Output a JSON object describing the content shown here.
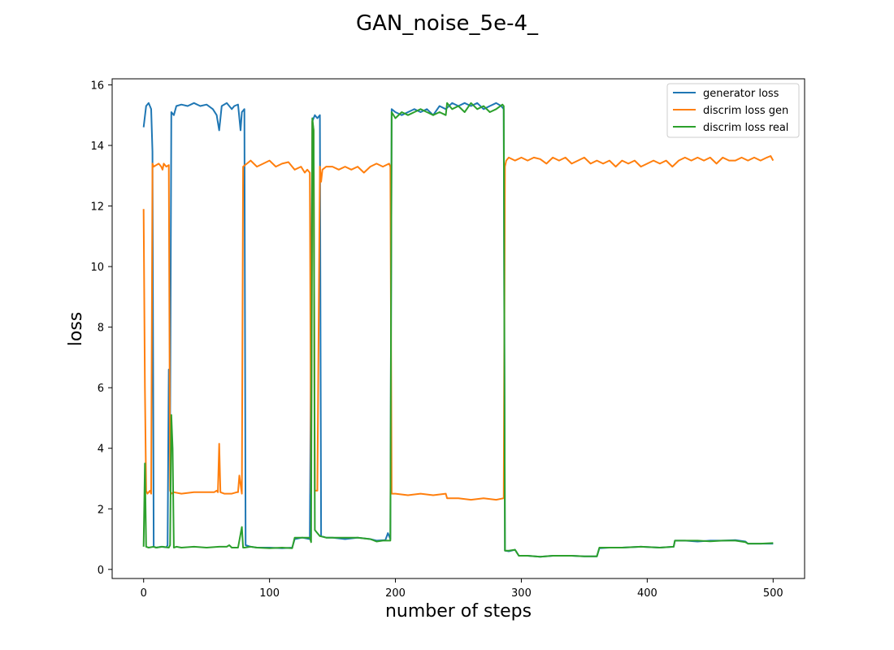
{
  "chart_data": {
    "type": "line",
    "title": "GAN_noise_5e-4_",
    "xlabel": "number of steps",
    "ylabel": "loss",
    "xlim": [
      -25,
      525
    ],
    "ylim": [
      -0.3,
      16.2
    ],
    "xticks": [
      0,
      100,
      200,
      300,
      400,
      500
    ],
    "yticks": [
      0,
      2,
      4,
      6,
      8,
      10,
      12,
      14,
      16
    ],
    "grid": false,
    "legend_position": "top-right",
    "series": [
      {
        "name": "generator loss",
        "color": "#1f77b4",
        "points": [
          [
            0,
            14.6
          ],
          [
            2,
            15.3
          ],
          [
            4,
            15.4
          ],
          [
            6,
            15.2
          ],
          [
            7,
            13.8
          ],
          [
            8,
            0.75
          ],
          [
            10,
            0.72
          ],
          [
            14,
            0.75
          ],
          [
            18,
            0.73
          ],
          [
            19,
            0.8
          ],
          [
            20,
            6.6
          ],
          [
            21,
            4.7
          ],
          [
            22,
            15.1
          ],
          [
            24,
            15.0
          ],
          [
            26,
            15.3
          ],
          [
            30,
            15.35
          ],
          [
            35,
            15.3
          ],
          [
            40,
            15.4
          ],
          [
            45,
            15.3
          ],
          [
            50,
            15.35
          ],
          [
            55,
            15.2
          ],
          [
            58,
            15.0
          ],
          [
            60,
            14.5
          ],
          [
            62,
            15.3
          ],
          [
            66,
            15.4
          ],
          [
            70,
            15.2
          ],
          [
            72,
            15.3
          ],
          [
            75,
            15.35
          ],
          [
            77,
            14.5
          ],
          [
            78,
            15.1
          ],
          [
            80,
            15.2
          ],
          [
            81,
            0.8
          ],
          [
            85,
            0.75
          ],
          [
            90,
            0.72
          ],
          [
            100,
            0.72
          ],
          [
            110,
            0.7
          ],
          [
            118,
            0.72
          ],
          [
            120,
            1.0
          ],
          [
            126,
            1.05
          ],
          [
            132,
            1.0
          ],
          [
            134,
            14.8
          ],
          [
            136,
            15.0
          ],
          [
            138,
            14.9
          ],
          [
            140,
            15.0
          ],
          [
            141,
            1.1
          ],
          [
            145,
            1.05
          ],
          [
            150,
            1.05
          ],
          [
            160,
            1.0
          ],
          [
            170,
            1.05
          ],
          [
            180,
            1.0
          ],
          [
            185,
            0.95
          ],
          [
            192,
            0.97
          ],
          [
            194,
            1.2
          ],
          [
            196,
            1.0
          ],
          [
            197,
            15.2
          ],
          [
            200,
            15.1
          ],
          [
            205,
            15.0
          ],
          [
            210,
            15.1
          ],
          [
            215,
            15.2
          ],
          [
            220,
            15.1
          ],
          [
            225,
            15.2
          ],
          [
            230,
            15.0
          ],
          [
            235,
            15.3
          ],
          [
            240,
            15.2
          ],
          [
            245,
            15.4
          ],
          [
            250,
            15.3
          ],
          [
            255,
            15.4
          ],
          [
            260,
            15.3
          ],
          [
            265,
            15.4
          ],
          [
            270,
            15.2
          ],
          [
            275,
            15.3
          ],
          [
            280,
            15.4
          ],
          [
            284,
            15.3
          ],
          [
            286,
            15.2
          ],
          [
            287,
            0.62
          ],
          [
            290,
            0.6
          ],
          [
            295,
            0.65
          ],
          [
            298,
            0.45
          ],
          [
            305,
            0.45
          ],
          [
            315,
            0.42
          ],
          [
            325,
            0.45
          ],
          [
            340,
            0.45
          ],
          [
            350,
            0.43
          ],
          [
            360,
            0.43
          ],
          [
            362,
            0.7
          ],
          [
            370,
            0.72
          ],
          [
            380,
            0.72
          ],
          [
            395,
            0.75
          ],
          [
            410,
            0.72
          ],
          [
            421,
            0.75
          ],
          [
            422,
            0.95
          ],
          [
            430,
            0.95
          ],
          [
            440,
            0.92
          ],
          [
            450,
            0.95
          ],
          [
            460,
            0.95
          ],
          [
            470,
            0.97
          ],
          [
            478,
            0.92
          ],
          [
            480,
            0.85
          ],
          [
            490,
            0.85
          ],
          [
            500,
            0.85
          ]
        ]
      },
      {
        "name": "discrim loss gen",
        "color": "#ff7f0e",
        "points": [
          [
            0,
            11.9
          ],
          [
            1,
            6.0
          ],
          [
            2,
            2.6
          ],
          [
            3,
            2.5
          ],
          [
            5,
            2.6
          ],
          [
            6,
            2.5
          ],
          [
            7,
            13.4
          ],
          [
            8,
            13.3
          ],
          [
            10,
            13.35
          ],
          [
            12,
            13.4
          ],
          [
            14,
            13.3
          ],
          [
            15,
            13.2
          ],
          [
            16,
            13.4
          ],
          [
            18,
            13.3
          ],
          [
            20,
            13.35
          ],
          [
            21,
            2.6
          ],
          [
            22,
            2.5
          ],
          [
            24,
            2.55
          ],
          [
            30,
            2.5
          ],
          [
            40,
            2.55
          ],
          [
            50,
            2.55
          ],
          [
            56,
            2.55
          ],
          [
            58,
            2.6
          ],
          [
            59,
            2.55
          ],
          [
            60,
            4.15
          ],
          [
            61,
            2.55
          ],
          [
            64,
            2.5
          ],
          [
            70,
            2.5
          ],
          [
            74,
            2.55
          ],
          [
            75,
            2.55
          ],
          [
            76,
            3.1
          ],
          [
            78,
            2.5
          ],
          [
            79,
            13.3
          ],
          [
            82,
            13.4
          ],
          [
            85,
            13.5
          ],
          [
            90,
            13.3
          ],
          [
            95,
            13.4
          ],
          [
            100,
            13.5
          ],
          [
            105,
            13.3
          ],
          [
            110,
            13.4
          ],
          [
            115,
            13.45
          ],
          [
            118,
            13.3
          ],
          [
            120,
            13.2
          ],
          [
            125,
            13.3
          ],
          [
            128,
            13.1
          ],
          [
            130,
            13.2
          ],
          [
            132,
            13.1
          ],
          [
            133,
            2.5
          ],
          [
            134,
            14.8
          ],
          [
            135,
            14.5
          ],
          [
            136,
            2.6
          ],
          [
            138,
            2.6
          ],
          [
            140,
            13.3
          ],
          [
            141,
            12.8
          ],
          [
            142,
            13.2
          ],
          [
            145,
            13.3
          ],
          [
            150,
            13.3
          ],
          [
            155,
            13.2
          ],
          [
            160,
            13.3
          ],
          [
            165,
            13.2
          ],
          [
            170,
            13.3
          ],
          [
            175,
            13.1
          ],
          [
            180,
            13.3
          ],
          [
            185,
            13.4
          ],
          [
            190,
            13.3
          ],
          [
            195,
            13.4
          ],
          [
            196,
            13.3
          ],
          [
            197,
            2.5
          ],
          [
            200,
            2.5
          ],
          [
            210,
            2.45
          ],
          [
            220,
            2.5
          ],
          [
            230,
            2.45
          ],
          [
            240,
            2.5
          ],
          [
            241,
            2.35
          ],
          [
            250,
            2.35
          ],
          [
            260,
            2.3
          ],
          [
            270,
            2.35
          ],
          [
            280,
            2.3
          ],
          [
            286,
            2.35
          ],
          [
            287,
            13.3
          ],
          [
            288,
            13.5
          ],
          [
            290,
            13.6
          ],
          [
            295,
            13.5
          ],
          [
            300,
            13.6
          ],
          [
            305,
            13.5
          ],
          [
            310,
            13.6
          ],
          [
            315,
            13.55
          ],
          [
            320,
            13.4
          ],
          [
            325,
            13.6
          ],
          [
            330,
            13.5
          ],
          [
            335,
            13.6
          ],
          [
            340,
            13.4
          ],
          [
            345,
            13.5
          ],
          [
            350,
            13.6
          ],
          [
            355,
            13.4
          ],
          [
            360,
            13.5
          ],
          [
            365,
            13.4
          ],
          [
            370,
            13.5
          ],
          [
            375,
            13.3
          ],
          [
            380,
            13.5
          ],
          [
            385,
            13.4
          ],
          [
            390,
            13.5
          ],
          [
            395,
            13.3
          ],
          [
            400,
            13.4
          ],
          [
            405,
            13.5
          ],
          [
            410,
            13.4
          ],
          [
            415,
            13.5
          ],
          [
            420,
            13.3
          ],
          [
            425,
            13.5
          ],
          [
            430,
            13.6
          ],
          [
            435,
            13.5
          ],
          [
            440,
            13.6
          ],
          [
            445,
            13.5
          ],
          [
            450,
            13.6
          ],
          [
            455,
            13.4
          ],
          [
            460,
            13.6
          ],
          [
            465,
            13.5
          ],
          [
            470,
            13.5
          ],
          [
            475,
            13.6
          ],
          [
            480,
            13.5
          ],
          [
            485,
            13.6
          ],
          [
            490,
            13.5
          ],
          [
            495,
            13.6
          ],
          [
            498,
            13.65
          ],
          [
            500,
            13.5
          ]
        ]
      },
      {
        "name": "discrim loss real",
        "color": "#2ca02c",
        "points": [
          [
            0,
            0.75
          ],
          [
            1,
            3.5
          ],
          [
            2,
            0.75
          ],
          [
            4,
            0.72
          ],
          [
            8,
            0.75
          ],
          [
            10,
            0.72
          ],
          [
            15,
            0.75
          ],
          [
            20,
            0.72
          ],
          [
            21,
            0.8
          ],
          [
            22,
            5.1
          ],
          [
            23,
            4.0
          ],
          [
            24,
            0.72
          ],
          [
            26,
            0.75
          ],
          [
            30,
            0.72
          ],
          [
            40,
            0.75
          ],
          [
            50,
            0.72
          ],
          [
            60,
            0.75
          ],
          [
            66,
            0.75
          ],
          [
            68,
            0.8
          ],
          [
            70,
            0.72
          ],
          [
            75,
            0.72
          ],
          [
            78,
            1.4
          ],
          [
            79,
            0.72
          ],
          [
            80,
            0.72
          ],
          [
            85,
            0.75
          ],
          [
            90,
            0.72
          ],
          [
            100,
            0.7
          ],
          [
            110,
            0.72
          ],
          [
            118,
            0.7
          ],
          [
            120,
            1.05
          ],
          [
            126,
            1.05
          ],
          [
            132,
            1.05
          ],
          [
            133,
            0.9
          ],
          [
            134,
            14.9
          ],
          [
            135,
            14.5
          ],
          [
            136,
            1.3
          ],
          [
            138,
            1.2
          ],
          [
            140,
            1.1
          ],
          [
            145,
            1.05
          ],
          [
            150,
            1.05
          ],
          [
            155,
            1.05
          ],
          [
            160,
            1.05
          ],
          [
            170,
            1.05
          ],
          [
            180,
            1.0
          ],
          [
            185,
            0.92
          ],
          [
            190,
            0.95
          ],
          [
            196,
            0.95
          ],
          [
            197,
            15.1
          ],
          [
            200,
            14.9
          ],
          [
            205,
            15.1
          ],
          [
            210,
            15.0
          ],
          [
            215,
            15.1
          ],
          [
            220,
            15.2
          ],
          [
            225,
            15.1
          ],
          [
            230,
            15.0
          ],
          [
            235,
            15.1
          ],
          [
            240,
            15.0
          ],
          [
            241,
            15.4
          ],
          [
            245,
            15.2
          ],
          [
            250,
            15.3
          ],
          [
            255,
            15.1
          ],
          [
            260,
            15.4
          ],
          [
            265,
            15.2
          ],
          [
            270,
            15.3
          ],
          [
            275,
            15.1
          ],
          [
            280,
            15.2
          ],
          [
            285,
            15.35
          ],
          [
            286,
            15.3
          ],
          [
            287,
            0.62
          ],
          [
            290,
            0.62
          ],
          [
            295,
            0.65
          ],
          [
            298,
            0.45
          ],
          [
            305,
            0.45
          ],
          [
            315,
            0.42
          ],
          [
            325,
            0.45
          ],
          [
            340,
            0.45
          ],
          [
            350,
            0.43
          ],
          [
            360,
            0.43
          ],
          [
            362,
            0.72
          ],
          [
            370,
            0.72
          ],
          [
            380,
            0.72
          ],
          [
            395,
            0.75
          ],
          [
            410,
            0.72
          ],
          [
            421,
            0.75
          ],
          [
            422,
            0.95
          ],
          [
            430,
            0.95
          ],
          [
            440,
            0.95
          ],
          [
            450,
            0.93
          ],
          [
            460,
            0.95
          ],
          [
            470,
            0.95
          ],
          [
            478,
            0.9
          ],
          [
            480,
            0.85
          ],
          [
            490,
            0.85
          ],
          [
            500,
            0.87
          ]
        ]
      }
    ]
  }
}
